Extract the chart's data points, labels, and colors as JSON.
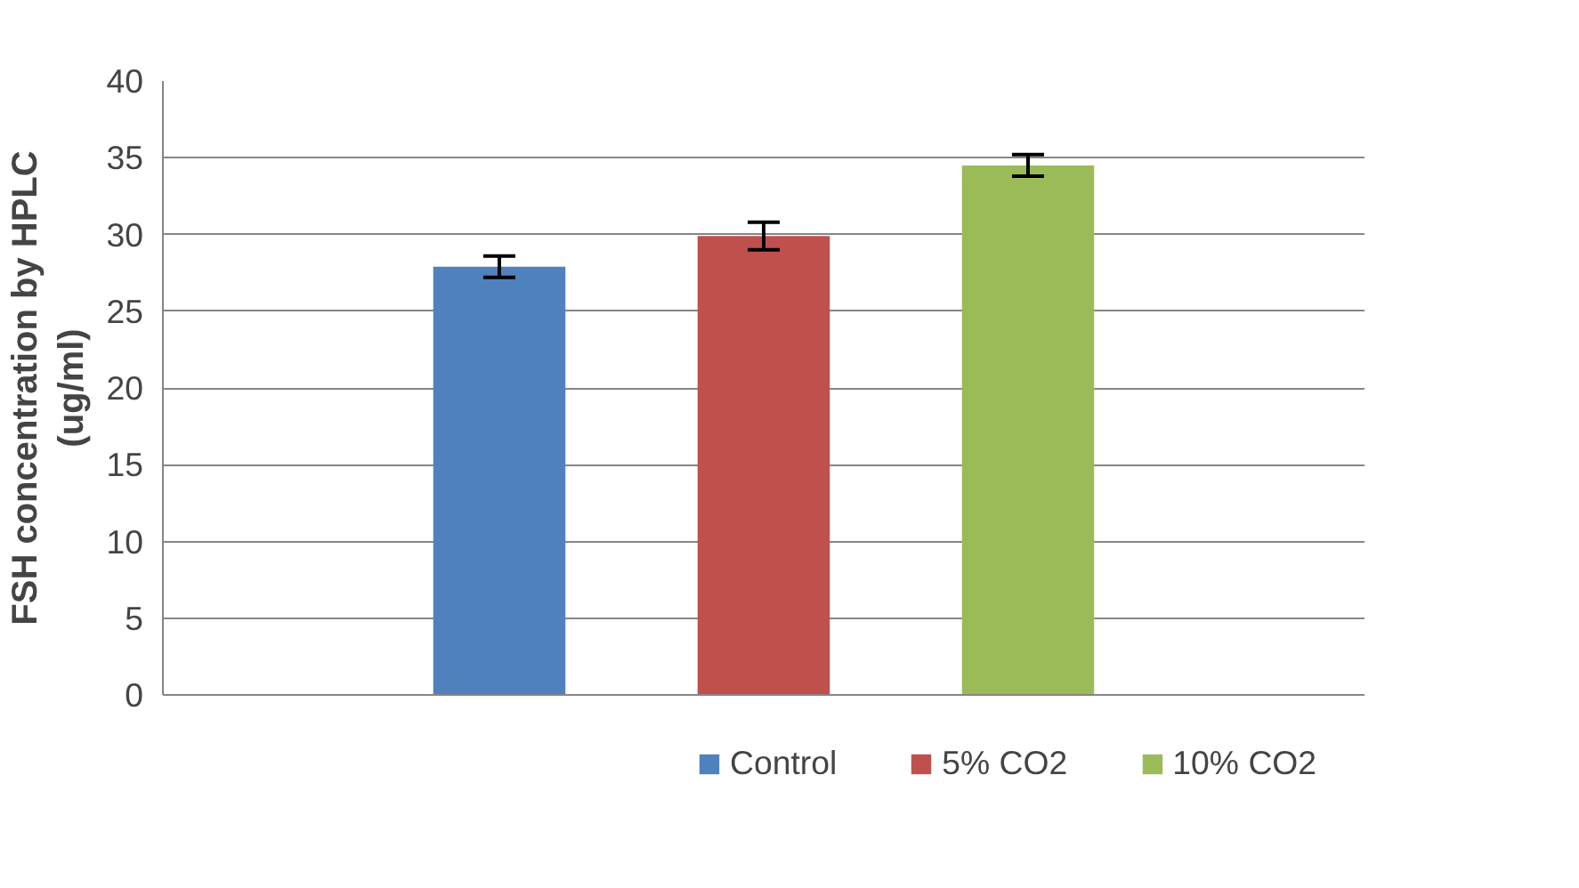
{
  "chart_data": {
    "type": "bar",
    "ylabel": "FSH concentration by HPLC\n(ug/ml)",
    "categories": [
      null
    ],
    "series": [
      {
        "name": "Control",
        "color": "#4f81bd",
        "values": [
          27.9
        ],
        "errors": [
          0.7
        ]
      },
      {
        "name": "5% CO2",
        "color": "#c0504d",
        "values": [
          29.9
        ],
        "errors": [
          0.9
        ]
      },
      {
        "name": "10% CO2",
        "color": "#9bbb59",
        "values": [
          34.5
        ],
        "errors": [
          0.7
        ]
      }
    ],
    "ylim": [
      0,
      40
    ],
    "yticks": [
      0,
      5,
      10,
      15,
      20,
      25,
      30,
      35,
      40
    ],
    "grid": "y",
    "legend": "bottom"
  }
}
